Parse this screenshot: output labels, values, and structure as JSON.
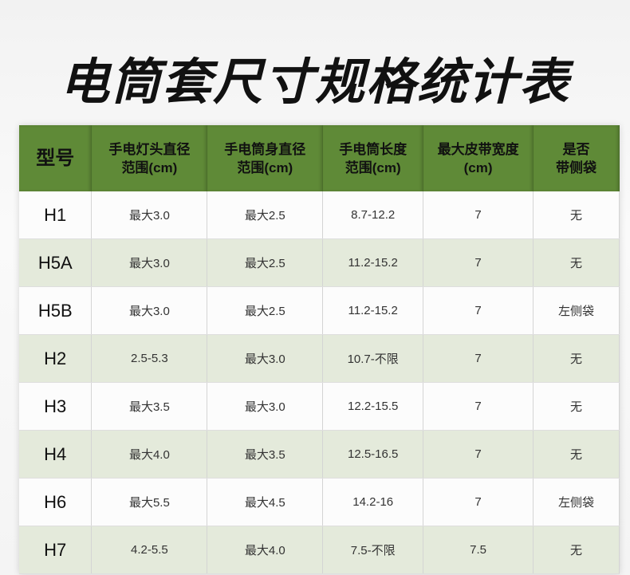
{
  "title": "电筒套尺寸规格统计表",
  "colors": {
    "header": "#5f8a37",
    "alt_row": "#e4eadb"
  },
  "table": {
    "headers": [
      [
        "型号"
      ],
      [
        "手电灯头直径",
        "范围(cm)"
      ],
      [
        "手电筒身直径",
        "范围(cm)"
      ],
      [
        "手电筒长度",
        "范围(cm)"
      ],
      [
        "最大皮带宽度",
        "(cm)"
      ],
      [
        "是否",
        "带侧袋"
      ]
    ],
    "rows": [
      [
        "H1",
        "最大3.0",
        "最大2.5",
        "8.7-12.2",
        "7",
        "无"
      ],
      [
        "H5A",
        "最大3.0",
        "最大2.5",
        "11.2-15.2",
        "7",
        "无"
      ],
      [
        "H5B",
        "最大3.0",
        "最大2.5",
        "11.2-15.2",
        "7",
        "左侧袋"
      ],
      [
        "H2",
        "2.5-5.3",
        "最大3.0",
        "10.7-不限",
        "7",
        "无"
      ],
      [
        "H3",
        "最大3.5",
        "最大3.0",
        "12.2-15.5",
        "7",
        "无"
      ],
      [
        "H4",
        "最大4.0",
        "最大3.5",
        "12.5-16.5",
        "7",
        "无"
      ],
      [
        "H6",
        "最大5.5",
        "最大4.5",
        "14.2-16",
        "7",
        "左侧袋"
      ],
      [
        "H7",
        "4.2-5.5",
        "最大4.0",
        "7.5-不限",
        "7.5",
        "无"
      ]
    ]
  }
}
